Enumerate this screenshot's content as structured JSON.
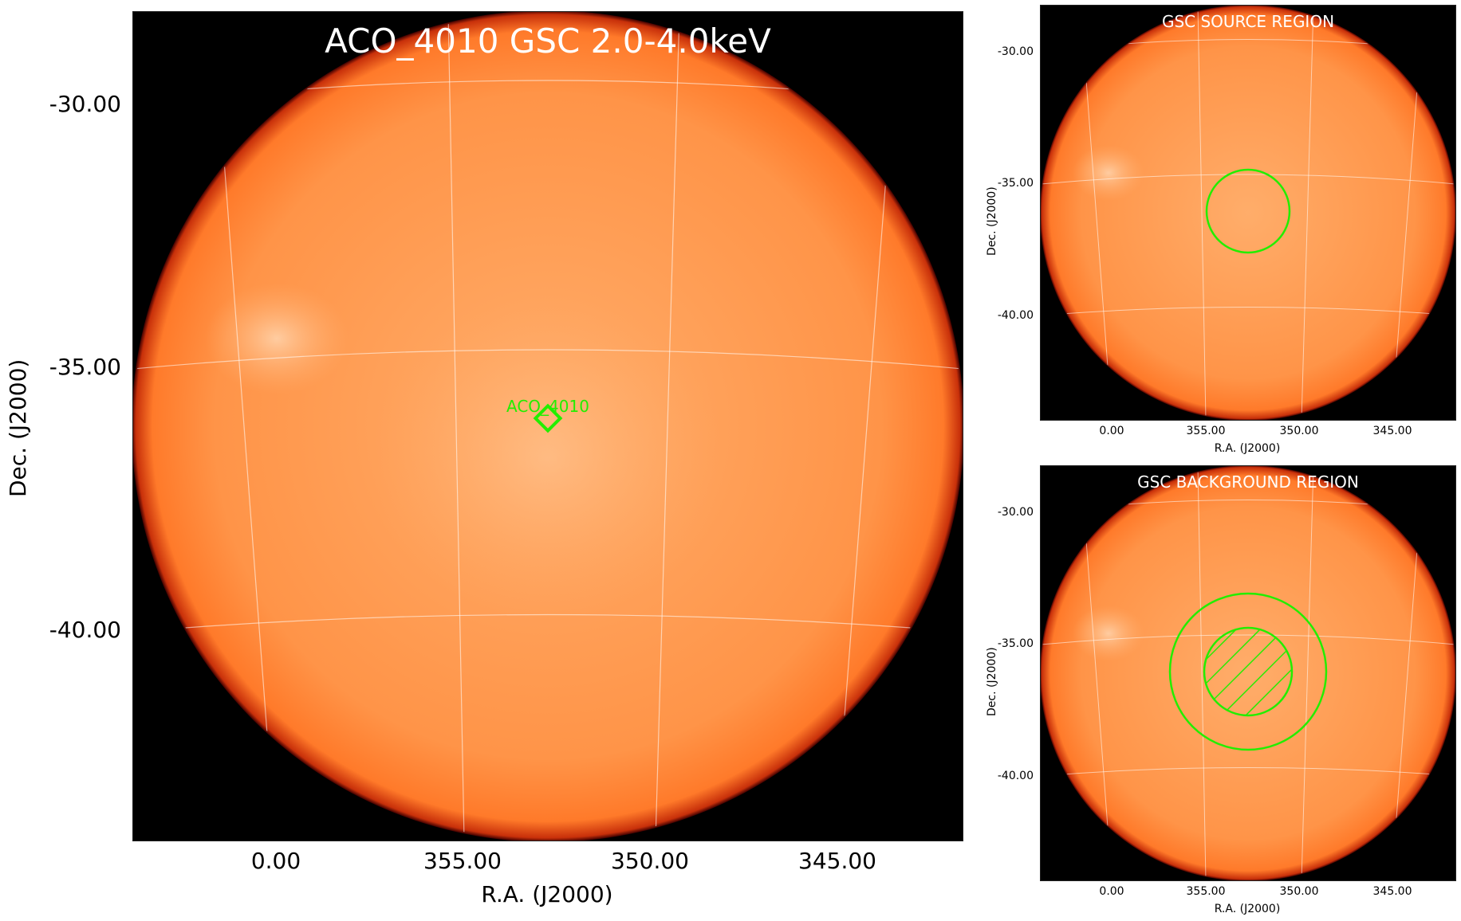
{
  "main": {
    "title": "ACO_4010 GSC 2.0-4.0keV",
    "y_ticks": [
      "-30.00",
      "-35.00",
      "-40.00"
    ],
    "x_ticks": [
      "0.00",
      "355.00",
      "350.00",
      "345.00"
    ],
    "y_label": "Dec. (J2000)",
    "x_label": "R.A. (J2000)",
    "marker_label": "ACO_4010",
    "marker_color": "#22ee00",
    "image_color": "#ff8c33"
  },
  "source_panel": {
    "title": "GSC SOURCE REGION",
    "y_ticks": [
      "-30.00",
      "-35.00",
      "-40.00"
    ],
    "x_ticks": [
      "0.00",
      "355.00",
      "350.00",
      "345.00"
    ],
    "y_label": "Dec. (J2000)",
    "x_label": "R.A. (J2000)"
  },
  "background_panel": {
    "title": "GSC BACKGROUND REGION",
    "y_ticks": [
      "-30.00",
      "-35.00",
      "-40.00"
    ],
    "x_ticks": [
      "0.00",
      "355.00",
      "350.00",
      "345.00"
    ],
    "y_label": "Dec. (J2000)",
    "x_label": "R.A. (J2000)"
  }
}
